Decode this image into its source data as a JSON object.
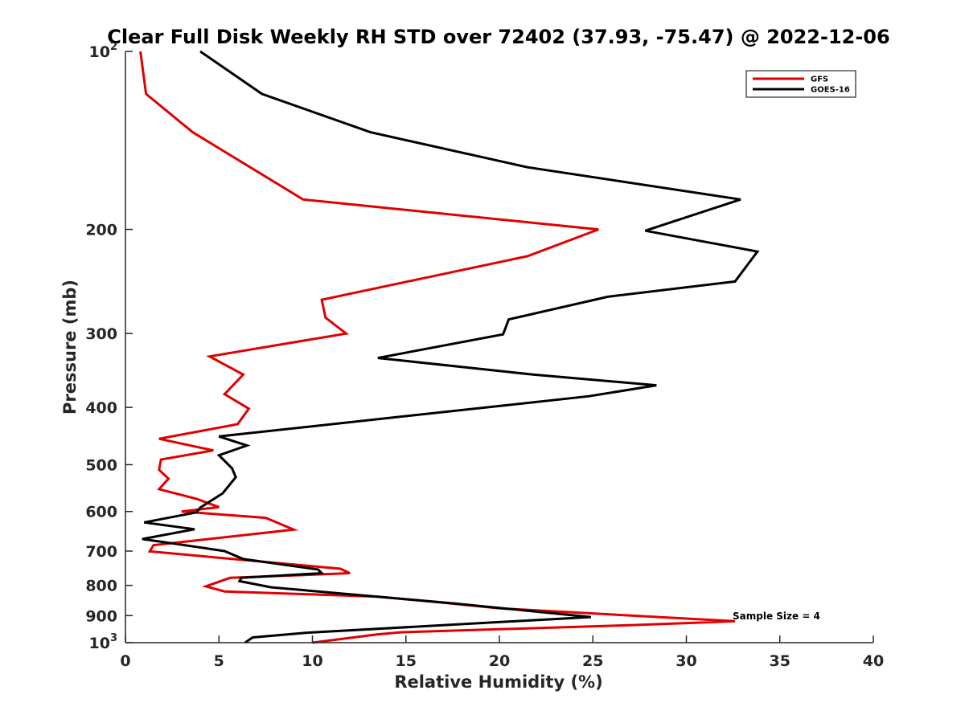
{
  "chart_data": {
    "type": "line",
    "title": "Clear Full Disk Weekly RH STD over 72402 (37.93, -75.47) @ 2022-12-06",
    "xlabel": "Relative Humidity (%)",
    "ylabel": "Pressure (mb)",
    "xlim": [
      0,
      40
    ],
    "ylim": [
      100,
      1000
    ],
    "y_scale": "log",
    "y_reversed": true,
    "x_ticks": [
      {
        "value": 0,
        "label": "0"
      },
      {
        "value": 5,
        "label": "5"
      },
      {
        "value": 10,
        "label": "10"
      },
      {
        "value": 15,
        "label": "15"
      },
      {
        "value": 20,
        "label": "20"
      },
      {
        "value": 25,
        "label": "25"
      },
      {
        "value": 30,
        "label": "30"
      },
      {
        "value": 35,
        "label": "35"
      },
      {
        "value": 40,
        "label": "40"
      }
    ],
    "y_ticks": [
      {
        "value": 100,
        "base": "10",
        "exp": "2"
      },
      {
        "value": 200,
        "label": "200"
      },
      {
        "value": 300,
        "label": "300"
      },
      {
        "value": 400,
        "label": "400"
      },
      {
        "value": 500,
        "label": "500"
      },
      {
        "value": 600,
        "label": "600"
      },
      {
        "value": 700,
        "label": "700"
      },
      {
        "value": 800,
        "label": "800"
      },
      {
        "value": 900,
        "label": "900"
      },
      {
        "value": 1000,
        "base": "10",
        "exp": "3"
      }
    ],
    "legend_position": "top-right",
    "annotation": "Sample Size = 4",
    "annotation_anchor": {
      "x": 32.6,
      "p": 900
    },
    "series": [
      {
        "name": "GFS",
        "color": "#e00000",
        "points": [
          {
            "x": 0.8,
            "p": 100
          },
          {
            "x": 1.1,
            "p": 118
          },
          {
            "x": 3.6,
            "p": 137
          },
          {
            "x": 9.5,
            "p": 178
          },
          {
            "x": 25.3,
            "p": 200
          },
          {
            "x": 21.5,
            "p": 222
          },
          {
            "x": 10.5,
            "p": 263
          },
          {
            "x": 10.7,
            "p": 282
          },
          {
            "x": 11.8,
            "p": 300
          },
          {
            "x": 4.5,
            "p": 328
          },
          {
            "x": 6.3,
            "p": 352
          },
          {
            "x": 5.3,
            "p": 380
          },
          {
            "x": 6.6,
            "p": 402
          },
          {
            "x": 6.0,
            "p": 427
          },
          {
            "x": 1.8,
            "p": 452
          },
          {
            "x": 4.7,
            "p": 473
          },
          {
            "x": 1.9,
            "p": 490
          },
          {
            "x": 1.8,
            "p": 510
          },
          {
            "x": 2.3,
            "p": 528
          },
          {
            "x": 1.8,
            "p": 550
          },
          {
            "x": 3.8,
            "p": 571
          },
          {
            "x": 5.0,
            "p": 590
          },
          {
            "x": 3.0,
            "p": 600
          },
          {
            "x": 7.5,
            "p": 615
          },
          {
            "x": 9.0,
            "p": 644
          },
          {
            "x": 1.5,
            "p": 684
          },
          {
            "x": 1.3,
            "p": 701
          },
          {
            "x": 11.5,
            "p": 750
          },
          {
            "x": 12.0,
            "p": 763
          },
          {
            "x": 5.6,
            "p": 777
          },
          {
            "x": 4.3,
            "p": 803
          },
          {
            "x": 5.3,
            "p": 819
          },
          {
            "x": 13.5,
            "p": 836
          },
          {
            "x": 17.0,
            "p": 856
          },
          {
            "x": 20.0,
            "p": 875
          },
          {
            "x": 32.6,
            "p": 920
          },
          {
            "x": 27.0,
            "p": 934
          },
          {
            "x": 14.8,
            "p": 960
          },
          {
            "x": 13.5,
            "p": 968
          },
          {
            "x": 10.0,
            "p": 1000
          }
        ]
      },
      {
        "name": "GOES-16",
        "color": "#000000",
        "points": [
          {
            "x": 4.0,
            "p": 100
          },
          {
            "x": 7.3,
            "p": 118
          },
          {
            "x": 13.1,
            "p": 137
          },
          {
            "x": 21.5,
            "p": 157
          },
          {
            "x": 32.9,
            "p": 178
          },
          {
            "x": 27.8,
            "p": 201
          },
          {
            "x": 33.8,
            "p": 218
          },
          {
            "x": 32.6,
            "p": 245
          },
          {
            "x": 25.8,
            "p": 260
          },
          {
            "x": 20.5,
            "p": 284
          },
          {
            "x": 20.2,
            "p": 301
          },
          {
            "x": 13.5,
            "p": 330
          },
          {
            "x": 21.8,
            "p": 352
          },
          {
            "x": 28.4,
            "p": 367
          },
          {
            "x": 24.8,
            "p": 383
          },
          {
            "x": 5.0,
            "p": 448
          },
          {
            "x": 6.5,
            "p": 464
          },
          {
            "x": 5.0,
            "p": 482
          },
          {
            "x": 5.7,
            "p": 507
          },
          {
            "x": 5.9,
            "p": 525
          },
          {
            "x": 5.2,
            "p": 559
          },
          {
            "x": 4.0,
            "p": 591
          },
          {
            "x": 3.8,
            "p": 602
          },
          {
            "x": 1.0,
            "p": 626
          },
          {
            "x": 3.7,
            "p": 643
          },
          {
            "x": 0.9,
            "p": 668
          },
          {
            "x": 2.6,
            "p": 680
          },
          {
            "x": 5.3,
            "p": 700
          },
          {
            "x": 6.3,
            "p": 722
          },
          {
            "x": 10.3,
            "p": 752
          },
          {
            "x": 10.5,
            "p": 763
          },
          {
            "x": 6.2,
            "p": 777
          },
          {
            "x": 6.1,
            "p": 787
          },
          {
            "x": 7.8,
            "p": 806
          },
          {
            "x": 17.5,
            "p": 858
          },
          {
            "x": 24.9,
            "p": 905
          },
          {
            "x": 9.7,
            "p": 962
          },
          {
            "x": 6.8,
            "p": 980
          },
          {
            "x": 6.4,
            "p": 1000
          }
        ]
      }
    ]
  }
}
